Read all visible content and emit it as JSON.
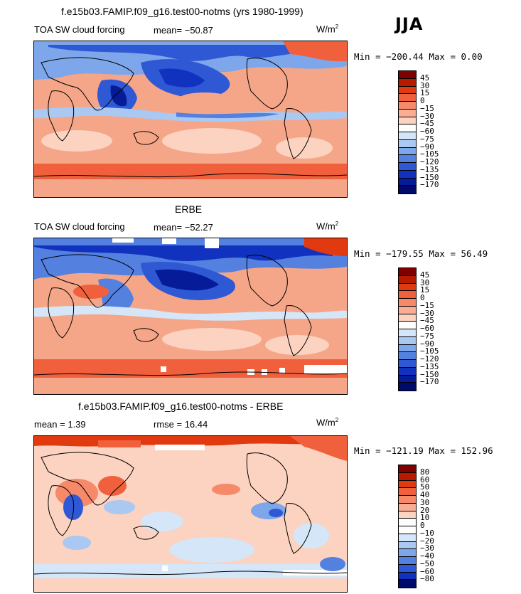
{
  "header": {
    "top_title": "f.e15b03.FAMIP.f09_g16.test00-notms (yrs 1980-1999)",
    "season": "JJA"
  },
  "panels": [
    {
      "title": "",
      "variable": "TOA SW cloud forcing",
      "stat_text": "mean= −50.87",
      "units": "W/m",
      "units_exp": "2",
      "minmax": "Min = −200.44 Max =   0.00",
      "levels": [
        "45",
        "30",
        "15",
        "0",
        "−15",
        "−30",
        "−45",
        "−60",
        "−75",
        "−90",
        "−105",
        "−120",
        "−135",
        "−150",
        "−170"
      ],
      "colors": [
        "#800000",
        "#b81a00",
        "#e23a10",
        "#f0603c",
        "#f5896a",
        "#f9ad94",
        "#fcd2c0",
        "#fdfdfd",
        "#d4e6f8",
        "#a9c8f2",
        "#7ea6ea",
        "#5480e0",
        "#2f58d5",
        "#1132bf",
        "#061b98",
        "#000a6b"
      ]
    },
    {
      "title": "ERBE",
      "variable": "TOA SW cloud forcing",
      "stat_text": "mean= −52.27",
      "units": "W/m",
      "units_exp": "2",
      "minmax": "Min = −179.55 Max =  56.49",
      "levels": [
        "45",
        "30",
        "15",
        "0",
        "−15",
        "−30",
        "−45",
        "−60",
        "−75",
        "−90",
        "−105",
        "−120",
        "−135",
        "−150",
        "−170"
      ],
      "colors": [
        "#800000",
        "#b81a00",
        "#e23a10",
        "#f0603c",
        "#f5896a",
        "#f9ad94",
        "#fcd2c0",
        "#fdfdfd",
        "#d4e6f8",
        "#a9c8f2",
        "#7ea6ea",
        "#5480e0",
        "#2f58d5",
        "#1132bf",
        "#061b98",
        "#000a6b"
      ]
    },
    {
      "title": "f.e15b03.FAMIP.f09_g16.test00-notms - ERBE",
      "stat_text": "mean =    1.39",
      "rmse_text": "rmse =   16.44",
      "units": "W/m",
      "units_exp": "2",
      "minmax": "Min = −121.19 Max = 152.96",
      "levels": [
        "80",
        "60",
        "50",
        "40",
        "30",
        "20",
        "10",
        "0",
        "−10",
        "−20",
        "−30",
        "−40",
        "−50",
        "−60",
        "−80"
      ],
      "colors": [
        "#800000",
        "#b81a00",
        "#e23a10",
        "#f0603c",
        "#f5896a",
        "#f9ad94",
        "#fcd2c0",
        "#fdfdfd",
        "#fdfdfd",
        "#d4e6f8",
        "#a9c8f2",
        "#7ea6ea",
        "#5480e0",
        "#2f58d5",
        "#1132bf",
        "#000a6b"
      ]
    }
  ]
}
